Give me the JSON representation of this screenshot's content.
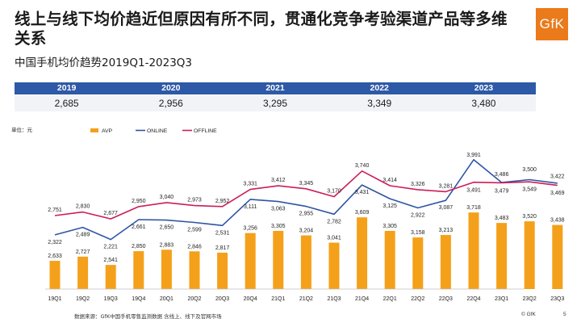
{
  "title": "线上与线下均价趋近但原因有所不同，贯通化竞争考验渠道产品等多维关系",
  "logo_text": "GfK",
  "subtitle": "中国手机均价趋势2019Q1-2023Q3",
  "yearly": [
    {
      "year": "2019",
      "value": "2,685"
    },
    {
      "year": "2020",
      "value": "2,956"
    },
    {
      "year": "2021",
      "value": "3,295"
    },
    {
      "year": "2022",
      "value": "3,349"
    },
    {
      "year": "2023",
      "value": "3,480"
    }
  ],
  "chart_data": {
    "type": "bar",
    "unit_label": "单位：元",
    "categories": [
      "19Q1",
      "19Q2",
      "19Q3",
      "19Q4",
      "20Q1",
      "20Q2",
      "20Q3",
      "20Q4",
      "21Q1",
      "21Q2",
      "21Q3",
      "21Q4",
      "22Q1",
      "22Q2",
      "22Q3",
      "22Q4",
      "23Q1",
      "23Q2",
      "23Q3"
    ],
    "series": [
      {
        "name": "AVP",
        "type": "bar",
        "color": "#f5a01a",
        "values": [
          2633,
          2727,
          2541,
          2850,
          2883,
          2846,
          2817,
          3256,
          3305,
          3204,
          3041,
          3609,
          3305,
          3158,
          3213,
          3718,
          3483,
          3520,
          3438
        ],
        "labels": [
          "2,633",
          "2,727",
          "2,541",
          "2,850",
          "2,883",
          "2,846",
          "2,817",
          "3,256",
          "3,305",
          "3,204",
          "3,041",
          "3,609",
          "3,305",
          "3,158",
          "3,213",
          "3,718",
          "3,483",
          "3,520",
          "3,438"
        ]
      },
      {
        "name": "ONLINE",
        "type": "line",
        "color": "#2f55a4",
        "values": [
          2322,
          2489,
          2221,
          2661,
          2650,
          2599,
          2531,
          3111,
          3063,
          2955,
          2782,
          3431,
          3125,
          2922,
          3087,
          3991,
          3486,
          3549,
          3469
        ],
        "labels": [
          "2,322",
          "2,489",
          "2,221",
          "2,661",
          "2,650",
          "2,599",
          "2,531",
          "3,111",
          "3,063",
          "2,955",
          "2,782",
          "3,431",
          "3,125",
          "2,922",
          "3,087",
          "3,991",
          "3,486",
          "3,549",
          "3,469"
        ]
      },
      {
        "name": "OFFLINE",
        "type": "line",
        "color": "#cc1d5a",
        "values": [
          2751,
          2830,
          2677,
          2950,
          3040,
          2973,
          2952,
          3331,
          3412,
          3345,
          3170,
          3740,
          3414,
          3326,
          3281,
          3491,
          3479,
          3500,
          3422
        ],
        "labels": [
          "2,751",
          "2,830",
          "2,677",
          "2,950",
          "3,040",
          "2,973",
          "2,952",
          "3,331",
          "3,412",
          "3,345",
          "3,170",
          "3,740",
          "3,414",
          "3,326",
          "3,281",
          "3,491",
          "3,479",
          "3,500",
          "3,422"
        ]
      }
    ]
  },
  "footer": "数据来源：GfK中国手机零售监测数据 含线上、线下及官网市场",
  "copyright": "© GfK",
  "page_number": "5"
}
